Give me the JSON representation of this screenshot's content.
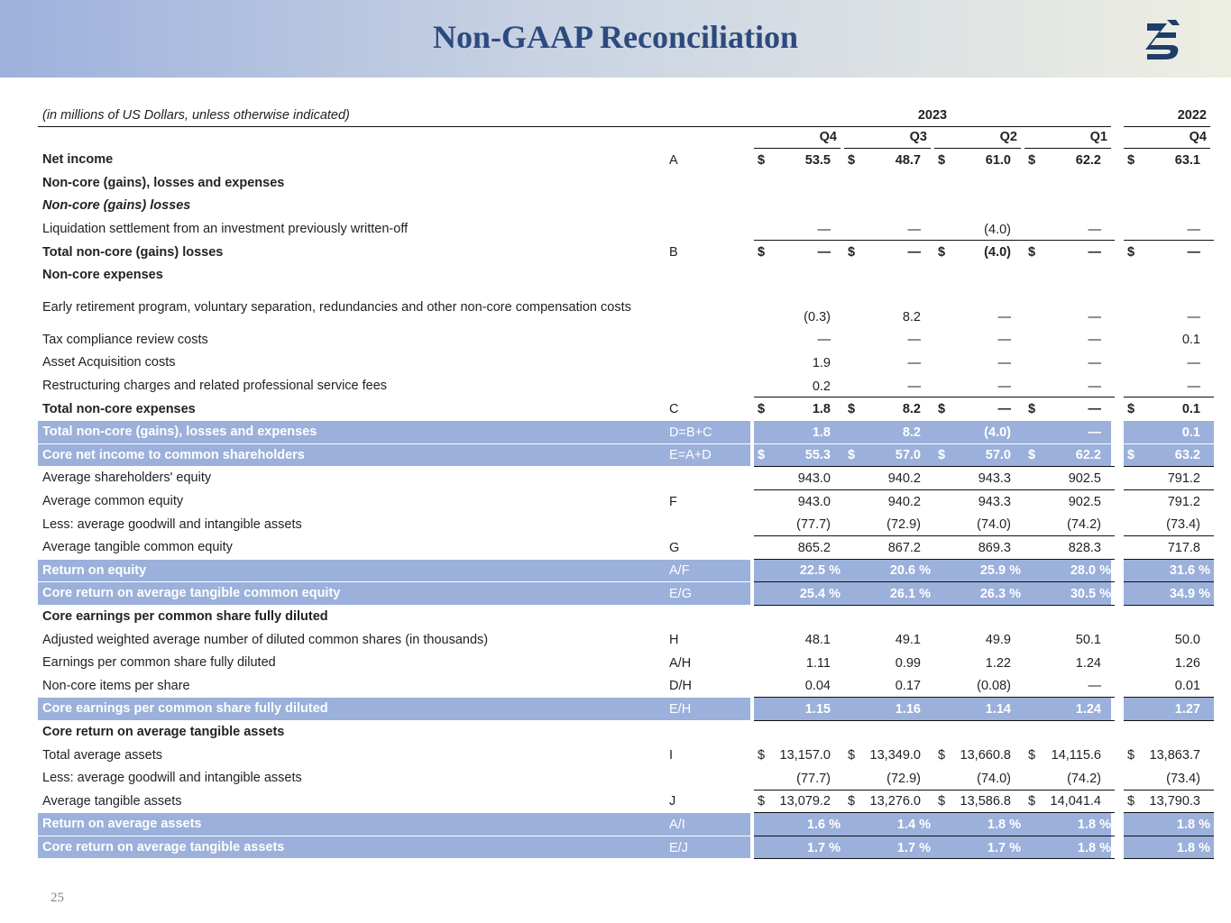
{
  "header": {
    "title": "Non-GAAP Reconciliation"
  },
  "table": {
    "note": "(in millions of US Dollars, unless otherwise indicated)",
    "years": [
      "2023",
      "2022"
    ],
    "quarters": [
      "Q4",
      "Q3",
      "Q2",
      "Q1",
      "Q4"
    ],
    "rows": [
      {
        "label": "Net income",
        "ref": "A",
        "symbol": "$",
        "cells": [
          "53.5",
          "48.7",
          "61.0",
          "62.2",
          "63.1"
        ]
      },
      {
        "label": "Non-core (gains), losses and expenses"
      },
      {
        "label": "Non-core (gains) losses"
      },
      {
        "label": "Liquidation settlement from an investment previously written-off",
        "cells": [
          "—",
          "—",
          "(4.0)",
          "—",
          "—"
        ]
      },
      {
        "label": "Total non-core (gains) losses",
        "ref": "B",
        "symbol": "$",
        "cells": [
          "—",
          "—",
          "(4.0)",
          "—",
          "—"
        ]
      },
      {
        "label": "Non-core expenses"
      },
      {
        "label": "Early retirement program, voluntary separation, redundancies and other non-core compensation costs",
        "cells": [
          "(0.3)",
          "8.2",
          "—",
          "—",
          "—"
        ]
      },
      {
        "label": "Tax compliance review costs",
        "cells": [
          "—",
          "—",
          "—",
          "—",
          "0.1"
        ]
      },
      {
        "label": "Asset Acquisition costs",
        "cells": [
          "1.9",
          "—",
          "—",
          "—",
          "—"
        ]
      },
      {
        "label": "Restructuring charges and related professional service fees",
        "cells": [
          "0.2",
          "—",
          "—",
          "—",
          "—"
        ]
      },
      {
        "label": "Total non-core expenses",
        "ref": "C",
        "symbol": "$",
        "cells": [
          "1.8",
          "8.2",
          "—",
          "—",
          "0.1"
        ]
      },
      {
        "label": "Total non-core (gains), losses and expenses",
        "ref": "D=B+C",
        "cells": [
          "1.8",
          "8.2",
          "(4.0)",
          "—",
          "0.1"
        ]
      },
      {
        "label": "Core net income to common shareholders",
        "ref": "E=A+D",
        "symbol": "$",
        "cells": [
          "55.3",
          "57.0",
          "57.0",
          "62.2",
          "63.2"
        ]
      },
      {
        "label": "Average shareholders' equity",
        "cells": [
          "943.0",
          "940.2",
          "943.3",
          "902.5",
          "791.2"
        ]
      },
      {
        "label": "Average common equity",
        "ref": "F",
        "cells": [
          "943.0",
          "940.2",
          "943.3",
          "902.5",
          "791.2"
        ]
      },
      {
        "label": "Less: average goodwill and intangible assets",
        "cells": [
          "(77.7)",
          "(72.9)",
          "(74.0)",
          "(74.2)",
          "(73.4)"
        ]
      },
      {
        "label": "Average tangible common equity",
        "ref": "G",
        "cells": [
          "865.2",
          "867.2",
          "869.3",
          "828.3",
          "717.8"
        ]
      },
      {
        "label": "Return on equity",
        "ref": "A/F",
        "cells": [
          "22.5 %",
          "20.6 %",
          "25.9 %",
          "28.0 %",
          "31.6 %"
        ]
      },
      {
        "label": "Core return on average tangible common equity",
        "ref": "E/G",
        "cells": [
          "25.4 %",
          "26.1 %",
          "26.3 %",
          "30.5 %",
          "34.9 %"
        ]
      },
      {
        "label": "Core earnings per common share fully diluted"
      },
      {
        "label": "Adjusted weighted average number of diluted common shares (in thousands)",
        "ref": "H",
        "cells": [
          "48.1",
          "49.1",
          "49.9",
          "50.1",
          "50.0"
        ]
      },
      {
        "label": "Earnings per common share fully diluted",
        "ref": "A/H",
        "cells": [
          "1.11",
          "0.99",
          "1.22",
          "1.24",
          "1.26"
        ]
      },
      {
        "label": "Non-core items per share",
        "ref": "D/H",
        "cells": [
          "0.04",
          "0.17",
          "(0.08)",
          "—",
          "0.01"
        ]
      },
      {
        "label": "Core earnings per common share fully diluted",
        "ref": "E/H",
        "cells": [
          "1.15",
          "1.16",
          "1.14",
          "1.24",
          "1.27"
        ]
      },
      {
        "label": "Core return on average tangible assets"
      },
      {
        "label": "Total average assets",
        "ref": "I",
        "symbol": "$",
        "cells": [
          "13,157.0",
          "13,349.0",
          "13,660.8",
          "14,115.6",
          "13,863.7"
        ]
      },
      {
        "label": "Less: average goodwill and intangible assets",
        "cells": [
          "(77.7)",
          "(72.9)",
          "(74.0)",
          "(74.2)",
          "(73.4)"
        ]
      },
      {
        "label": "Average tangible assets",
        "ref": "J",
        "symbol": "$",
        "cells": [
          "13,079.2",
          "13,276.0",
          "13,586.8",
          "14,041.4",
          "13,790.3"
        ]
      },
      {
        "label": "Return on average assets",
        "ref": "A/I",
        "cells": [
          "1.6 %",
          "1.4 %",
          "1.8 %",
          "1.8 %",
          "1.8 %"
        ]
      },
      {
        "label": "Core return on average tangible assets",
        "ref": "E/J",
        "cells": [
          "1.7 %",
          "1.7 %",
          "1.7 %",
          "1.8 %",
          "1.8 %"
        ]
      }
    ]
  },
  "page_number": "25"
}
